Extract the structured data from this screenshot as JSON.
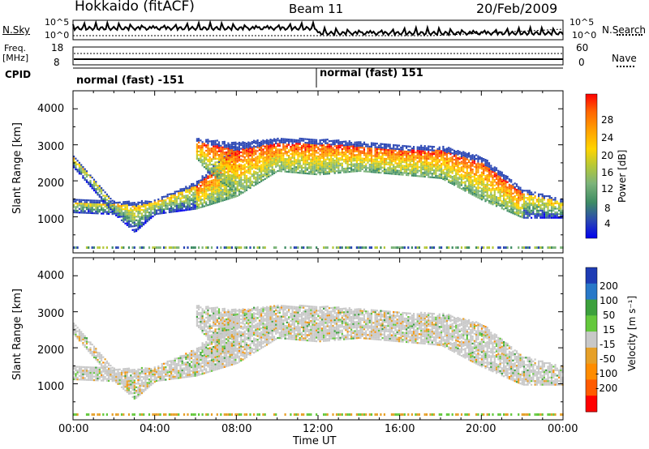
{
  "header": {
    "station": "Hokkaido (fitACF)",
    "beam": "Beam 11",
    "date": "20/Feb/2009"
  },
  "noise_panel": {
    "left_label": "N.Sky",
    "right_label": "N.Search",
    "left_ticks": [
      "10^5",
      "10^0"
    ],
    "right_ticks": [
      "10^5",
      "10^0"
    ]
  },
  "freq_panel": {
    "left_label_line1": "Freq.",
    "left_label_line2": "[MHz]",
    "right_label": "Nave",
    "left_ticks": [
      "18",
      "8"
    ],
    "right_ticks": [
      "60",
      "0"
    ]
  },
  "cpid_panel": {
    "label": "CPID",
    "segments": [
      "normal (fast) -151",
      "normal (fast) 151"
    ]
  },
  "range_axis": {
    "label": "Slant Range [km]",
    "ticks": [
      "4000",
      "3000",
      "2000",
      "1000"
    ]
  },
  "time_axis": {
    "label": "Time UT",
    "ticks": [
      "00:00",
      "04:00",
      "08:00",
      "12:00",
      "16:00",
      "20:00",
      "00:00"
    ]
  },
  "power_colorbar": {
    "label": "Power [dB]",
    "ticks": [
      "28",
      "24",
      "20",
      "16",
      "12",
      "8",
      "4"
    ],
    "colors": [
      "#0000ee",
      "#2a46b4",
      "#3e8c64",
      "#7cb47a",
      "#b4c838",
      "#ffd400",
      "#ffa000",
      "#ff6400",
      "#ff0000"
    ]
  },
  "velocity_colorbar": {
    "label": "Velocity [m s⁻¹]",
    "ticks": [
      "200",
      "100",
      "50",
      "15",
      "-15",
      "-50",
      "-100",
      "-200"
    ],
    "colors": [
      "#1e3cb4",
      "#2878c8",
      "#3ca03c",
      "#64c83c",
      "#c8c8c8",
      "#e6a028",
      "#ff8c00",
      "#ff5a00",
      "#ff0000"
    ]
  },
  "chart_data": {
    "type": "heatmap",
    "x_unit": "hours UT",
    "xlim": [
      0,
      24
    ],
    "ylim": [
      0,
      4500
    ],
    "range_gates_km": [
      {
        "t": 0,
        "bands": [
          [
            1150,
            1500
          ],
          [
            2400,
            2700
          ]
        ]
      },
      {
        "t": 2,
        "bands": [
          [
            1100,
            1450
          ]
        ]
      },
      {
        "t": 3,
        "bands": [
          [
            600,
            1450
          ]
        ]
      },
      {
        "t": 4,
        "bands": [
          [
            1100,
            1500
          ]
        ]
      },
      {
        "t": 6,
        "bands": [
          [
            1250,
            2000
          ],
          [
            2600,
            3200
          ]
        ]
      },
      {
        "t": 8,
        "bands": [
          [
            1600,
            3100
          ]
        ]
      },
      {
        "t": 10,
        "bands": [
          [
            2300,
            3200
          ]
        ]
      },
      {
        "t": 12,
        "bands": [
          [
            2200,
            3200
          ]
        ]
      },
      {
        "t": 14,
        "bands": [
          [
            2300,
            3100
          ]
        ]
      },
      {
        "t": 16,
        "bands": [
          [
            2200,
            3000
          ]
        ]
      },
      {
        "t": 18,
        "bands": [
          [
            2100,
            3000
          ]
        ]
      },
      {
        "t": 20,
        "bands": [
          [
            1500,
            2700
          ]
        ]
      },
      {
        "t": 22,
        "bands": [
          [
            1000,
            1800
          ]
        ]
      },
      {
        "t": 24,
        "bands": [
          [
            1000,
            1500
          ]
        ]
      }
    ]
  }
}
